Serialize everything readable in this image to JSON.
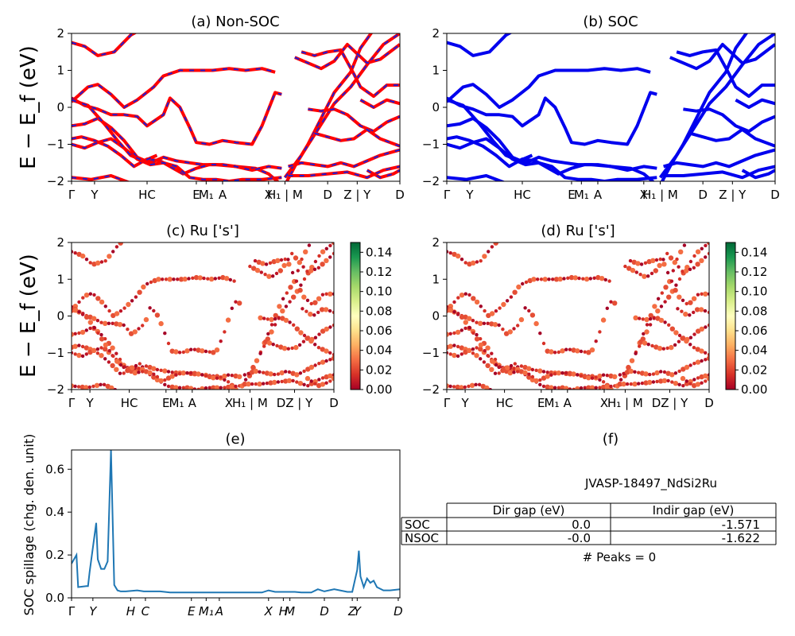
{
  "chart_data": [
    {
      "id": "a",
      "type": "line",
      "title": "(a) Non-SOC",
      "ylabel": "E − E_f (eV)",
      "ylim": [
        -2,
        2
      ],
      "yticks": [
        "2",
        "1",
        "0",
        "−1",
        "−2"
      ],
      "xlabels": [
        "Γ",
        "Y",
        "HC",
        "E",
        "M₁",
        "A",
        "X",
        "H₁ | M",
        "D",
        "Z | Y",
        "D"
      ],
      "series": [
        {
          "name": "",
          "color": "#ff0000",
          "style": "solid"
        },
        {
          "name": "",
          "color": "#1f1fd6",
          "style": "dashed"
        }
      ]
    },
    {
      "id": "b",
      "type": "line",
      "title": "(b) SOC",
      "ylim": [
        -2,
        2
      ],
      "yticks": [
        "2",
        "1",
        "0",
        "−1",
        "−2"
      ],
      "xlabels": [
        "Γ",
        "Y",
        "HC",
        "E",
        "M₁",
        "A",
        "X",
        "H₁ | M",
        "D",
        "Z | Y",
        "D"
      ],
      "series": [
        {
          "name": "",
          "color": "#0000ee",
          "style": "solid"
        }
      ]
    },
    {
      "id": "c",
      "type": "scatter",
      "title": "(c)  Ru ['s']",
      "ylabel": "E − E_f (eV)",
      "ylim": [
        -2,
        2
      ],
      "yticks": [
        "2",
        "1",
        "0",
        "−1",
        "−2"
      ],
      "xlabels": [
        "Γ",
        "Y",
        "HC",
        "E",
        "M₁",
        "A",
        "X",
        "H₁ | M",
        "DZ | Y",
        "D"
      ],
      "colorbar": {
        "ticks": [
          "0.14",
          "0.12",
          "0.10",
          "0.08",
          "0.06",
          "0.04",
          "0.02",
          "0.00"
        ],
        "range": [
          0,
          0.15
        ],
        "cmap": "RdYlGn"
      }
    },
    {
      "id": "d",
      "type": "scatter",
      "title": "(d) Ru ['s']",
      "ylim": [
        -2,
        2
      ],
      "yticks": [
        "2",
        "1",
        "0",
        "−1",
        "−2"
      ],
      "xlabels": [
        "Γ",
        "Y",
        "HC",
        "E",
        "M₁",
        "A",
        "X",
        "H₁ | M",
        "DZ | Y",
        "D"
      ],
      "colorbar": {
        "ticks": [
          "0.14",
          "0.12",
          "0.10",
          "0.08",
          "0.06",
          "0.04",
          "0.02",
          "0.00"
        ],
        "range": [
          0,
          0.15
        ],
        "cmap": "RdYlGn"
      }
    },
    {
      "id": "e",
      "type": "line",
      "title": "(e)",
      "ylabel": "SOC spillage (chg. den. unit)",
      "ylim": [
        0,
        0.69
      ],
      "yticks": [
        "0.6",
        "0.4",
        "0.2",
        "0.0"
      ],
      "xlabels": [
        "Γ",
        "Y",
        "H",
        "C",
        "E",
        "M₁",
        "A",
        "X",
        "H",
        "M",
        "D",
        "Z",
        "Y",
        "D"
      ],
      "x": [
        0,
        0.015,
        0.02,
        0.045,
        0.05,
        0.055,
        0.075,
        0.08,
        0.09,
        0.1,
        0.11,
        0.12,
        0.13,
        0.14,
        0.15,
        0.165,
        0.2,
        0.22,
        0.25,
        0.26,
        0.27,
        0.3,
        0.33,
        0.35,
        0.38,
        0.4,
        0.45,
        0.5,
        0.55,
        0.58,
        0.6,
        0.62,
        0.63,
        0.65,
        0.68,
        0.7,
        0.72,
        0.73,
        0.75,
        0.77,
        0.8,
        0.84,
        0.85,
        0.855,
        0.87,
        0.875,
        0.88,
        0.89,
        0.9,
        0.91,
        0.92,
        0.93,
        0.95,
        0.97,
        1.0
      ],
      "series": [
        {
          "name": "",
          "color": "#1f77b4",
          "values": [
            0.16,
            0.2,
            0.05,
            0.055,
            0.055,
            0.12,
            0.35,
            0.18,
            0.135,
            0.135,
            0.17,
            0.69,
            0.06,
            0.035,
            0.03,
            0.03,
            0.035,
            0.03,
            0.03,
            0.03,
            0.03,
            0.025,
            0.025,
            0.025,
            0.025,
            0.025,
            0.025,
            0.025,
            0.025,
            0.025,
            0.035,
            0.028,
            0.028,
            0.028,
            0.028,
            0.025,
            0.025,
            0.025,
            0.04,
            0.03,
            0.04,
            0.028,
            0.028,
            0.028,
            0.13,
            0.22,
            0.1,
            0.05,
            0.09,
            0.07,
            0.08,
            0.05,
            0.035,
            0.035,
            0.04
          ]
        }
      ]
    }
  ],
  "panel_f": {
    "title": "(f)",
    "heading": "JVASP-18497_NdSi2Ru",
    "columns": [
      "Dir gap (eV)",
      "Indir gap (eV)"
    ],
    "rows": [
      {
        "label": "SOC",
        "dir": "0.0",
        "indir": "-1.571"
      },
      {
        "label": "NSOC",
        "dir": "-0.0",
        "indir": "-1.622"
      }
    ],
    "footer": "# Peaks = 0"
  }
}
